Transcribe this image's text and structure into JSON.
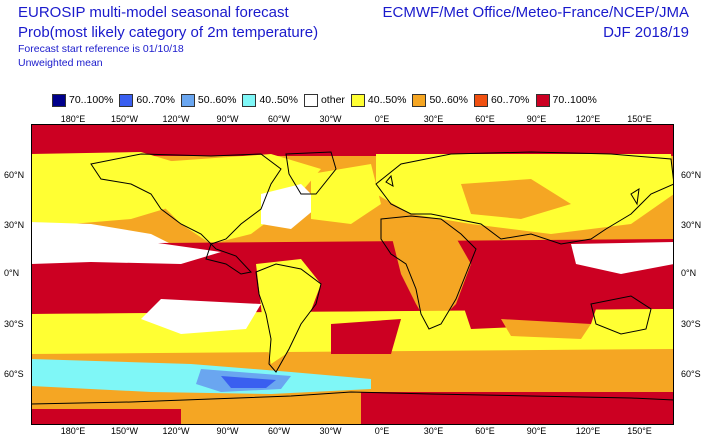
{
  "header": {
    "title_line1": "EUROSIP multi-model seasonal forecast",
    "title_line2": "Prob(most likely category of 2m temperature)",
    "line3": "Forecast start reference is 01/10/18",
    "line4": "Unweighted mean",
    "right_line1": "ECMWF/Met Office/Meteo-France/NCEP/JMA",
    "right_line2": "DJF 2018/19"
  },
  "legend": [
    {
      "label": "70..100%",
      "color": "#00008b"
    },
    {
      "label": "60..70%",
      "color": "#3a5ff0"
    },
    {
      "label": "50..60%",
      "color": "#6aa6f0"
    },
    {
      "label": "40..50%",
      "color": "#7ff7f7"
    },
    {
      "label": "other",
      "color": "#ffffff"
    },
    {
      "label": "40..50%",
      "color": "#ffff33"
    },
    {
      "label": "50..60%",
      "color": "#f5a623"
    },
    {
      "label": "60..70%",
      "color": "#f05010"
    },
    {
      "label": "70..100%",
      "color": "#cc0022"
    }
  ],
  "axes": {
    "lon_ticks": [
      "180°E",
      "150°W",
      "120°W",
      "90°W",
      "60°W",
      "30°W",
      "0°E",
      "30°E",
      "60°E",
      "90°E",
      "120°E",
      "150°E"
    ],
    "lat_ticks": [
      "60°N",
      "30°N",
      "0°N",
      "30°S",
      "60°S"
    ]
  },
  "colors": {
    "text": "#1a1acc",
    "ocean_warm": "#cc0022",
    "land_outline": "#000000"
  }
}
